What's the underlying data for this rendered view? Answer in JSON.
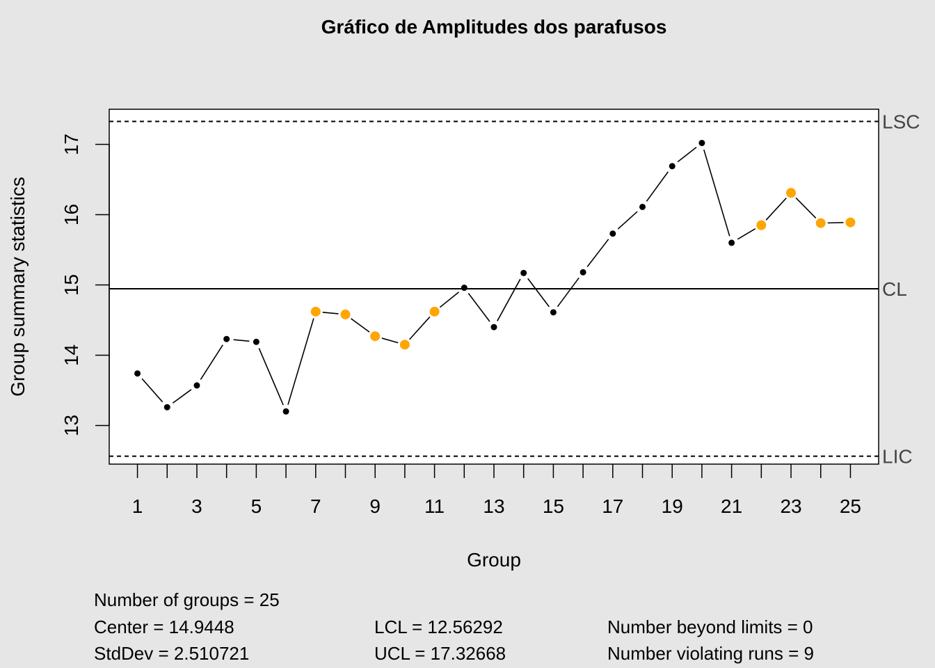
{
  "chart_data": {
    "type": "line",
    "title": "Gráfico de Amplitudes dos parafusos",
    "xlabel": "Group",
    "ylabel": "Group summary statistics",
    "x": [
      1,
      2,
      3,
      4,
      5,
      6,
      7,
      8,
      9,
      10,
      11,
      12,
      13,
      14,
      15,
      16,
      17,
      18,
      19,
      20,
      21,
      22,
      23,
      24,
      25
    ],
    "values": [
      13.74,
      13.26,
      13.57,
      14.23,
      14.19,
      13.2,
      14.62,
      14.58,
      14.27,
      14.15,
      14.62,
      14.96,
      14.4,
      15.17,
      14.61,
      15.18,
      15.73,
      16.11,
      16.69,
      17.02,
      15.6,
      15.85,
      16.31,
      15.88,
      15.89
    ],
    "violating_runs": [
      7,
      8,
      9,
      10,
      11,
      22,
      23,
      24,
      25
    ],
    "xlim": [
      0.05,
      25.95
    ],
    "ylim": [
      12.45,
      17.5
    ],
    "xticks": [
      1,
      2,
      3,
      4,
      5,
      6,
      7,
      8,
      9,
      10,
      11,
      12,
      13,
      14,
      15,
      16,
      17,
      18,
      19,
      20,
      21,
      22,
      23,
      24,
      25
    ],
    "xtick_labels": [
      "1",
      "",
      "3",
      "",
      "5",
      "",
      "7",
      "",
      "9",
      "",
      "11",
      "",
      "13",
      "",
      "15",
      "",
      "17",
      "",
      "19",
      "",
      "21",
      "",
      "23",
      "",
      "25"
    ],
    "yticks": [
      13,
      14,
      15,
      16,
      17
    ],
    "center": 14.9448,
    "lcl": 12.56292,
    "ucl": 17.32668,
    "limit_labels": {
      "ucl": "LSC",
      "center": "CL",
      "lcl": "LIC"
    },
    "grid": false,
    "colors": {
      "point": "#000000",
      "violation": "#ffa500",
      "background": "#e6e6e6",
      "plot_bg": "#ffffff"
    }
  },
  "stats": {
    "groups": "Number of groups = 25",
    "center": "Center = 14.9448",
    "stddev": "StdDev = 2.510721",
    "lcl": "LCL = 12.56292",
    "ucl": "UCL = 17.32668",
    "beyond": "Number beyond limits = 0",
    "violating": "Number violating runs = 9"
  }
}
